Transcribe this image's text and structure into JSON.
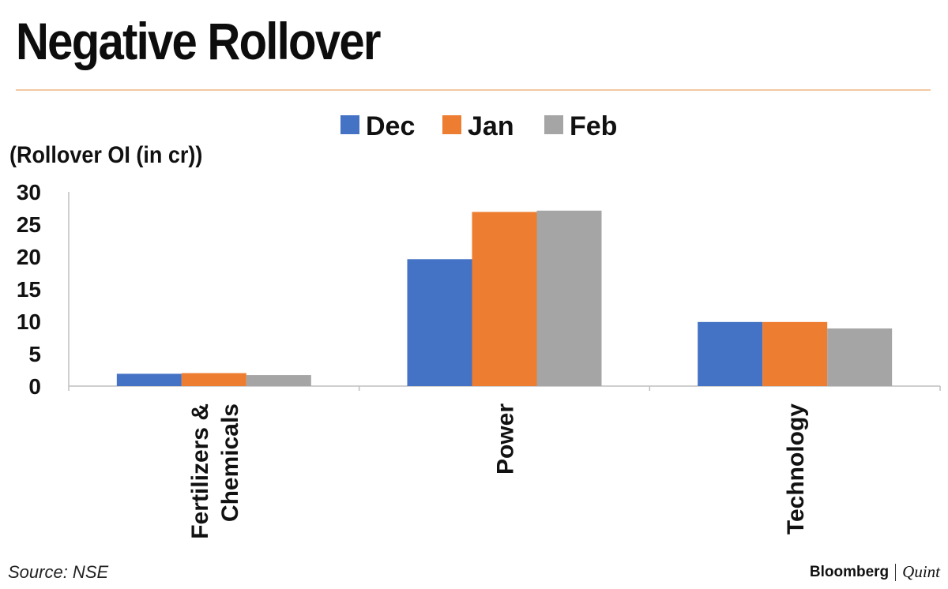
{
  "title": "Negative Rollover",
  "source": "Source: NSE",
  "brand": {
    "primary": "Bloomberg",
    "secondary": "Quint"
  },
  "chart_data": {
    "type": "bar",
    "ylabel": "(Rollover OI (in cr))",
    "ylim": [
      0,
      30
    ],
    "yticks": [
      0,
      5,
      10,
      15,
      20,
      25,
      30
    ],
    "categories": [
      "Fertilizers & Chemicals",
      "Power",
      "Technology"
    ],
    "category_lines": [
      [
        "Fertilizers &",
        "Chemicals"
      ],
      [
        "Power"
      ],
      [
        "Technology"
      ]
    ],
    "legend_position": "top-center",
    "grid": false,
    "series": [
      {
        "name": "Dec",
        "color": "#4472c4",
        "values": [
          1.9,
          19.6,
          9.9
        ]
      },
      {
        "name": "Jan",
        "color": "#ed7d31",
        "values": [
          2.0,
          26.9,
          9.9
        ]
      },
      {
        "name": "Feb",
        "color": "#a5a5a5",
        "values": [
          1.7,
          27.1,
          8.9
        ]
      }
    ]
  }
}
